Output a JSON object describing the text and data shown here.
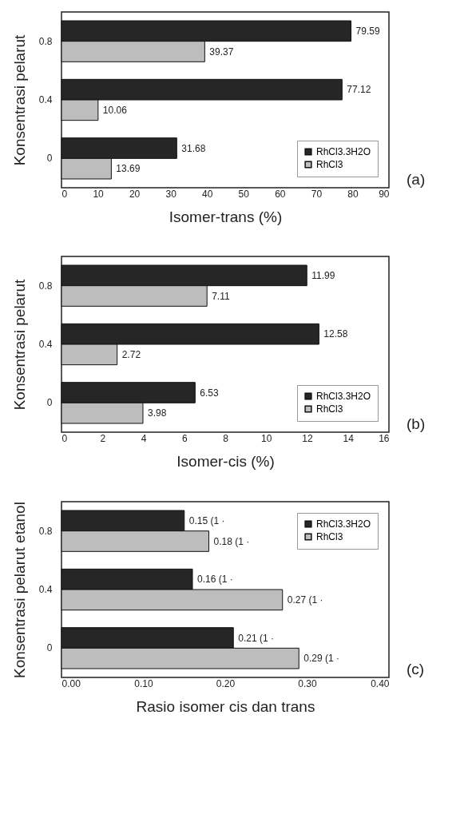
{
  "chart_data": [
    {
      "type": "bar",
      "orientation": "horizontal",
      "categories": [
        "0.8",
        "0.4",
        "0"
      ],
      "xlabel": "Isomer-trans (%)",
      "ylabel": "Konsentrasi pelarut",
      "xlim": [
        0,
        90
      ],
      "xticks": [
        0,
        10,
        20,
        30,
        40,
        50,
        60,
        70,
        80,
        90
      ],
      "legend": "bottom right",
      "data_labels": true,
      "annotations": [
        "(a)"
      ],
      "series": [
        {
          "name": "RhCl3.3H2O",
          "color": "#262626",
          "values": [
            79.59,
            77.12,
            31.68
          ]
        },
        {
          "name": "RhCl3",
          "color": "#bdbdbd",
          "values": [
            39.37,
            10.06,
            13.69
          ]
        }
      ]
    },
    {
      "type": "bar",
      "orientation": "horizontal",
      "categories": [
        "0.8",
        "0.4",
        "0"
      ],
      "xlabel": "Isomer-cis (%)",
      "ylabel": "Konsentrasi pelarut",
      "xlim": [
        0,
        16
      ],
      "xticks": [
        0,
        2,
        4,
        6,
        8,
        10,
        12,
        14,
        16
      ],
      "legend": "bottom right",
      "data_labels": true,
      "annotations": [
        "(b)"
      ],
      "series": [
        {
          "name": "RhCl3.3H2O",
          "color": "#262626",
          "values": [
            11.99,
            12.58,
            6.53
          ]
        },
        {
          "name": "RhCl3",
          "color": "#bdbdbd",
          "values": [
            7.11,
            2.72,
            3.98
          ]
        }
      ]
    },
    {
      "type": "bar",
      "orientation": "horizontal",
      "categories": [
        "0.8",
        "0.4",
        "0"
      ],
      "xlabel": "Rasio isomer cis dan trans",
      "ylabel": "Konsentrasi pelarut etanol",
      "xlim": [
        0,
        0.4
      ],
      "xticks": [
        {
          "value": 0,
          "label": "0.00"
        },
        {
          "value": 0.1,
          "label": "0.10"
        },
        {
          "value": 0.2,
          "label": "0.20"
        },
        {
          "value": 0.3,
          "label": "0.30"
        },
        {
          "value": 0.4,
          "label": "0.40"
        }
      ],
      "legend": "top right",
      "annotations": [
        "(c)"
      ],
      "series": [
        {
          "name": "RhCl3.3H2O",
          "color": "#262626",
          "values": [
            0.15,
            0.16,
            0.21
          ],
          "value_labels": [
            "0.15 (1 ·",
            "0.16 (1 ·",
            "0.21 (1 ·"
          ]
        },
        {
          "name": "RhCl3",
          "color": "#bdbdbd",
          "values": [
            0.18,
            0.27,
            0.29
          ],
          "value_labels": [
            "0.18 (1 ·",
            "0.27 (1 ·",
            "0.29 (1 ·"
          ]
        }
      ]
    }
  ]
}
